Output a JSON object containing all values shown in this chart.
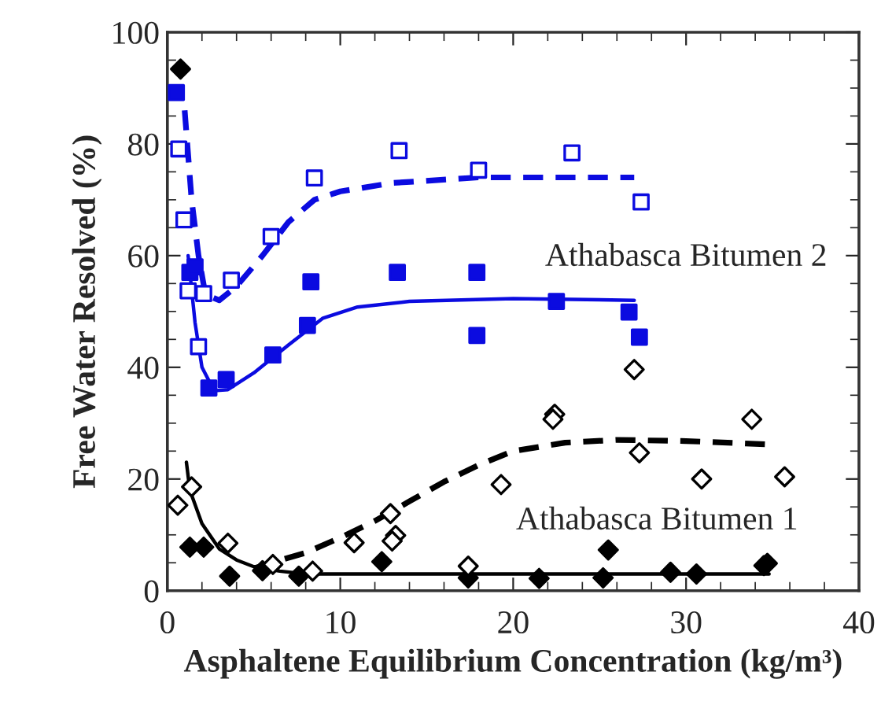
{
  "chart_data": {
    "type": "scatter",
    "xlabel": "Asphaltene Equilibrium Concentration (kg/m³)",
    "ylabel": "Free Water Resolved (%)",
    "xlim": [
      0,
      40
    ],
    "xticks": [
      0,
      10,
      20,
      30,
      40
    ],
    "ylim": [
      0,
      100
    ],
    "yticks": [
      0,
      20,
      40,
      60,
      80,
      100
    ],
    "grid": false,
    "legend": false,
    "annotations": [
      "Athabasca Bitumen 2",
      "Athabasca Bitumen 1"
    ],
    "series": [
      {
        "marker": "square",
        "color": "#0b0be0",
        "x": [
          0.52,
          1.3,
          1.6,
          2.4,
          3.4,
          6.1,
          8.1,
          8.3,
          13.3,
          17.9,
          17.9,
          22.5,
          26.7,
          27.3
        ],
        "values": [
          89.2,
          57.0,
          58,
          36.3,
          37.8,
          42.2,
          47.5,
          55.3,
          57.0,
          57.0,
          45.7,
          51.8,
          49.9,
          45.4
        ]
      },
      {
        "marker": "square",
        "color": "#0b0be0",
        "x": [
          0.66,
          0.96,
          1.2,
          1.8,
          2.1,
          3.7,
          6.0,
          8.5,
          13.4,
          18.0,
          23.4,
          27.4
        ],
        "values": [
          79.1,
          66.4,
          53.7,
          43.7,
          53.2,
          55.6,
          63.4,
          73.9,
          78.8,
          75.3,
          78.4,
          69.6
        ]
      },
      {
        "marker": "diamond",
        "color": "#000000",
        "x": [
          0.76,
          1.3,
          2.1,
          3.6,
          5.5,
          7.6,
          12.4,
          17.4,
          21.5,
          25.2,
          25.5,
          29.1,
          30.6,
          34.5,
          34.7
        ],
        "values": [
          93.4,
          7.8,
          7.8,
          2.6,
          3.6,
          2.6,
          5.2,
          2.3,
          2.2,
          2.3,
          7.3,
          3.3,
          3.0,
          4.5,
          4.9
        ]
      },
      {
        "marker": "diamond",
        "color": "#000000",
        "x": [
          0.6,
          1.4,
          3.5,
          6.1,
          8.4,
          10.8,
          12.9,
          13.2,
          13.0,
          17.4,
          19.3,
          22.4,
          22.3,
          27.3,
          27.0,
          30.9,
          33.8,
          35.7
        ],
        "values": [
          15.3,
          18.6,
          8.5,
          4.7,
          3.5,
          8.6,
          13.8,
          9.9,
          8.9,
          4.4,
          19.0,
          31.6,
          30.7,
          24.7,
          39.6,
          20.0,
          30.7,
          20.4
        ]
      },
      {
        "type": "line",
        "line_style": "solid",
        "marker": "none",
        "color": "#0b0be0",
        "x": [
          1.2,
          1.6,
          2.0,
          2.7,
          3.5,
          5,
          7,
          9,
          11,
          14,
          20,
          27
        ],
        "values": [
          60,
          48,
          40,
          35.8,
          36,
          39,
          44,
          48.8,
          50.8,
          51.8,
          52.3,
          52
        ]
      },
      {
        "type": "line",
        "line_style": "dashed",
        "marker": "none",
        "color": "#0b0be0",
        "x": [
          1.0,
          1.4,
          1.8,
          2.2,
          3,
          4,
          5.5,
          7,
          8.5,
          10,
          13,
          18,
          27
        ],
        "values": [
          86,
          70,
          60,
          53,
          52,
          54.5,
          60,
          66,
          70,
          71.5,
          73,
          74,
          74
        ]
      },
      {
        "type": "line",
        "line_style": "solid",
        "marker": "none",
        "color": "#000000",
        "x": [
          1.1,
          1.3,
          2,
          3,
          4,
          5,
          6.5,
          8,
          12,
          20,
          27,
          34.8
        ],
        "values": [
          23,
          18,
          12,
          7.5,
          5.5,
          4.3,
          3.5,
          3,
          3,
          3,
          3,
          3
        ]
      },
      {
        "type": "line",
        "line_style": "dashed",
        "marker": "none",
        "color": "#000000",
        "x": [
          5,
          6,
          8,
          10,
          12,
          14,
          16,
          18,
          20,
          23,
          26,
          30,
          34.8
        ],
        "values": [
          4,
          5,
          6.8,
          9.5,
          12.5,
          16,
          19.5,
          22.5,
          25,
          26.5,
          27,
          26.8,
          26.2
        ]
      }
    ]
  }
}
